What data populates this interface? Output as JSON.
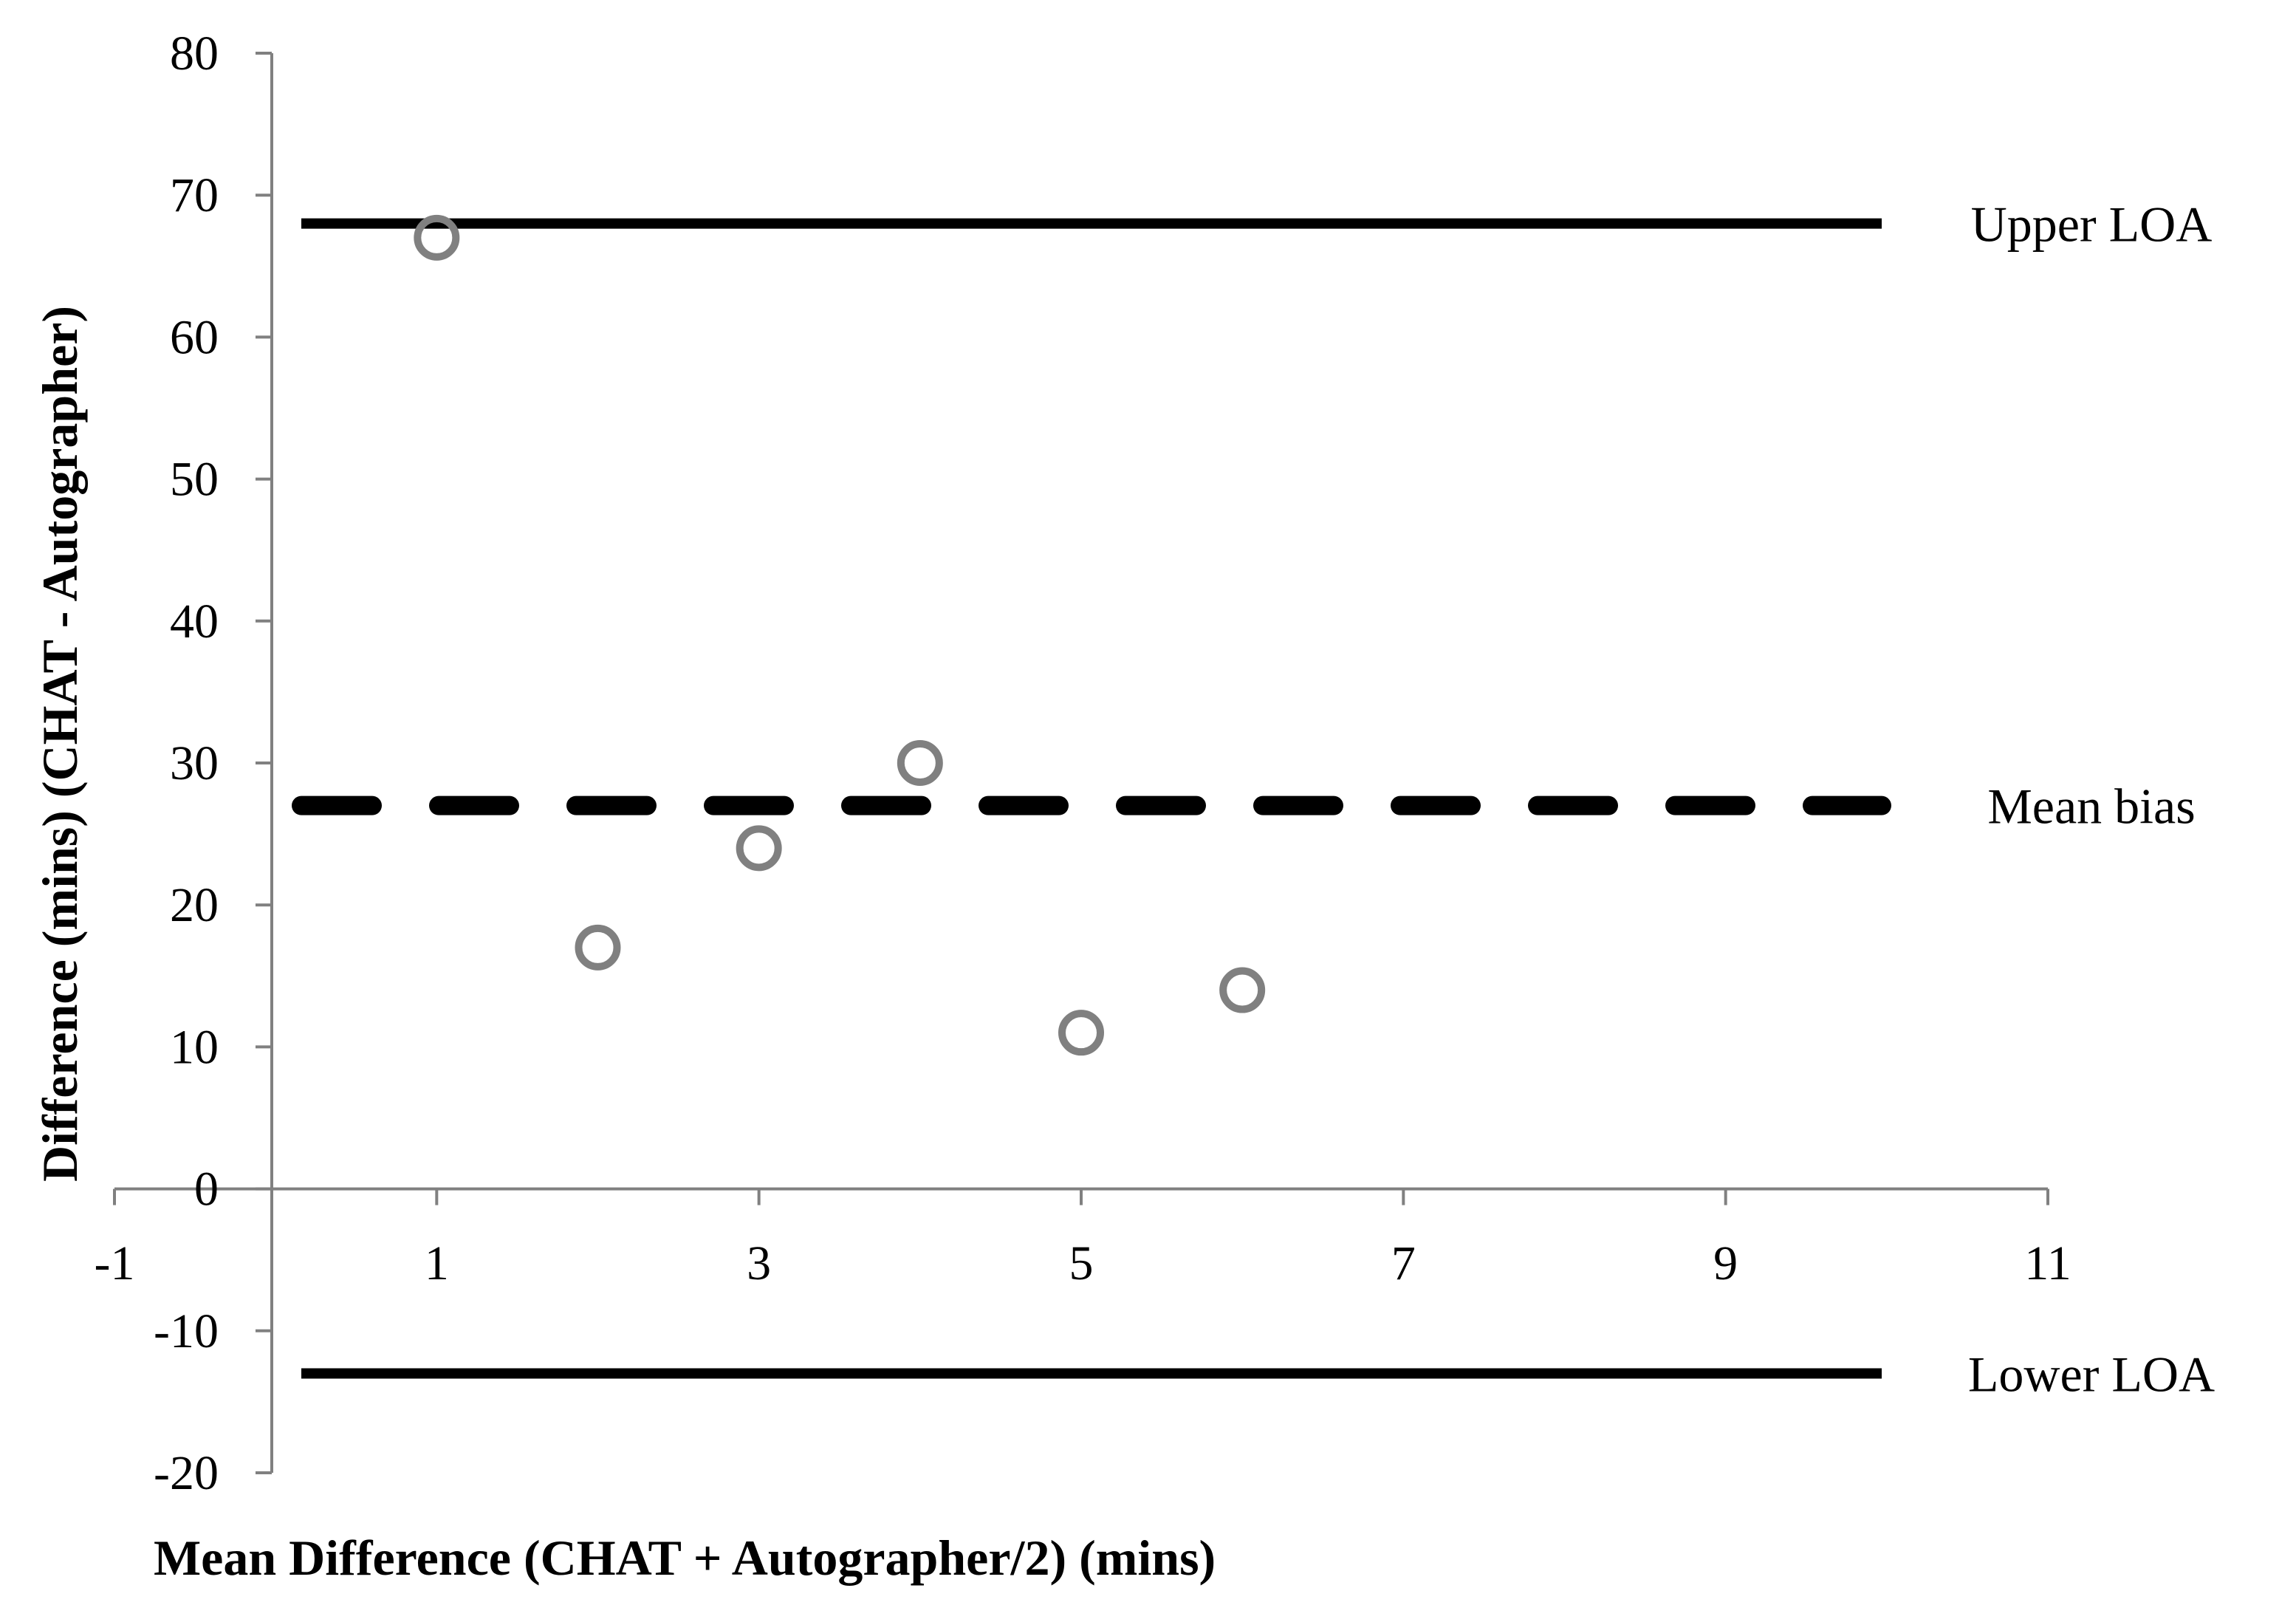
{
  "chart_data": {
    "type": "scatter",
    "title": "",
    "xlabel": "Mean Difference (CHAT + Autographer/2) (mins)",
    "ylabel": "Difference (mins) (CHAT - Autographer)",
    "xlim": [
      -1,
      11
    ],
    "ylim": [
      -20,
      80
    ],
    "x_ticks": [
      "-1",
      "1",
      "3",
      "5",
      "7",
      "9",
      "11"
    ],
    "y_ticks": [
      "80",
      "70",
      "60",
      "50",
      "40",
      "30",
      "20",
      "10",
      "0",
      "-10",
      "-20"
    ],
    "grid": false,
    "legend": "none",
    "series": [
      {
        "x": [
          1,
          2,
          3,
          4,
          5,
          6
        ],
        "y": [
          67,
          17,
          24,
          30,
          11,
          14
        ],
        "marker": "open-circle",
        "color": "#808080"
      }
    ],
    "reference_lines": [
      {
        "label": "Upper LOA",
        "y": 68,
        "style": "solid",
        "color": "#000000"
      },
      {
        "label": "Mean bias",
        "y": 27,
        "style": "dashed",
        "color": "#000000"
      },
      {
        "label": "Lower LOA",
        "y": -13,
        "style": "solid",
        "color": "#000000"
      }
    ]
  }
}
